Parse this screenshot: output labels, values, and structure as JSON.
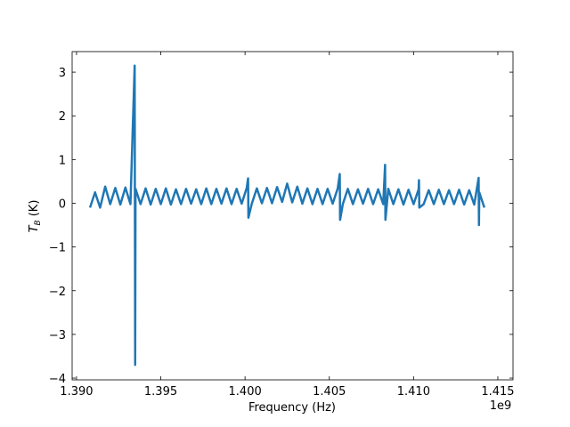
{
  "chart_data": {
    "type": "line",
    "xlabel": "Frequency (Hz)",
    "x_offset_label": "1e9",
    "ylabel": {
      "symbol": "T",
      "subscript": "B",
      "unit": "(K)"
    },
    "xlim": [
      1389740000,
      1415900000
    ],
    "ylim": [
      -4.04,
      3.47
    ],
    "xticks": [
      {
        "value": 1390000000,
        "label": "1.390"
      },
      {
        "value": 1395000000,
        "label": "1.395"
      },
      {
        "value": 1400000000,
        "label": "1.400"
      },
      {
        "value": 1405000000,
        "label": "1.405"
      },
      {
        "value": 1410000000,
        "label": "1.410"
      },
      {
        "value": 1415000000,
        "label": "1.415"
      }
    ],
    "yticks": [
      {
        "value": -4,
        "label": "−4"
      },
      {
        "value": -3,
        "label": "−3"
      },
      {
        "value": -2,
        "label": "−2"
      },
      {
        "value": -1,
        "label": "−1"
      },
      0,
      1,
      2,
      3
    ],
    "grid": false,
    "series": [
      {
        "color": "#1f77b4",
        "x": [
          1390800000,
          1391100000,
          1391400000,
          1391700000,
          1392000000,
          1392300000,
          1392600000,
          1392900000,
          1393200000,
          1393450000,
          1393480000,
          1393500000,
          1393800000,
          1394100000,
          1394400000,
          1394700000,
          1395000000,
          1395300000,
          1395600000,
          1395900000,
          1396200000,
          1396500000,
          1396800000,
          1397100000,
          1397400000,
          1397700000,
          1398000000,
          1398300000,
          1398600000,
          1398900000,
          1399200000,
          1399500000,
          1399800000,
          1400100000,
          1400180000,
          1400200000,
          1400400000,
          1400700000,
          1401000000,
          1401300000,
          1401600000,
          1401900000,
          1402200000,
          1402500000,
          1402800000,
          1403100000,
          1403400000,
          1403700000,
          1404000000,
          1404300000,
          1404600000,
          1404900000,
          1405200000,
          1405500000,
          1405620000,
          1405640000,
          1405800000,
          1406100000,
          1406400000,
          1406700000,
          1407000000,
          1407300000,
          1407600000,
          1407900000,
          1408200000,
          1408310000,
          1408330000,
          1408500000,
          1408800000,
          1409100000,
          1409400000,
          1409700000,
          1410000000,
          1410300000,
          1410320000,
          1410340000,
          1410600000,
          1410900000,
          1411200000,
          1411500000,
          1411800000,
          1412100000,
          1412400000,
          1412700000,
          1413000000,
          1413300000,
          1413600000,
          1413860000,
          1413880000,
          1413900000,
          1414200000
        ],
        "values": [
          -0.1,
          0.25,
          -0.1,
          0.38,
          -0.02,
          0.35,
          -0.03,
          0.36,
          -0.02,
          3.15,
          -3.7,
          0.33,
          -0.02,
          0.34,
          -0.03,
          0.33,
          -0.02,
          0.34,
          -0.03,
          0.32,
          -0.02,
          0.33,
          -0.01,
          0.32,
          -0.02,
          0.34,
          -0.02,
          0.33,
          -0.01,
          0.34,
          -0.02,
          0.33,
          -0.01,
          0.35,
          0.57,
          -0.33,
          -0.01,
          0.34,
          0.0,
          0.35,
          0.0,
          0.37,
          0.03,
          0.45,
          0.02,
          0.38,
          -0.01,
          0.34,
          -0.02,
          0.33,
          -0.02,
          0.33,
          -0.01,
          0.34,
          0.67,
          -0.38,
          -0.02,
          0.33,
          -0.02,
          0.32,
          -0.01,
          0.33,
          -0.02,
          0.32,
          -0.02,
          0.88,
          -0.38,
          0.33,
          -0.02,
          0.32,
          -0.03,
          0.31,
          -0.02,
          0.32,
          0.53,
          -0.1,
          -0.02,
          0.3,
          -0.02,
          0.31,
          -0.02,
          0.3,
          -0.02,
          0.31,
          -0.03,
          0.3,
          -0.03,
          0.58,
          -0.5,
          0.25,
          -0.1
        ]
      }
    ]
  }
}
